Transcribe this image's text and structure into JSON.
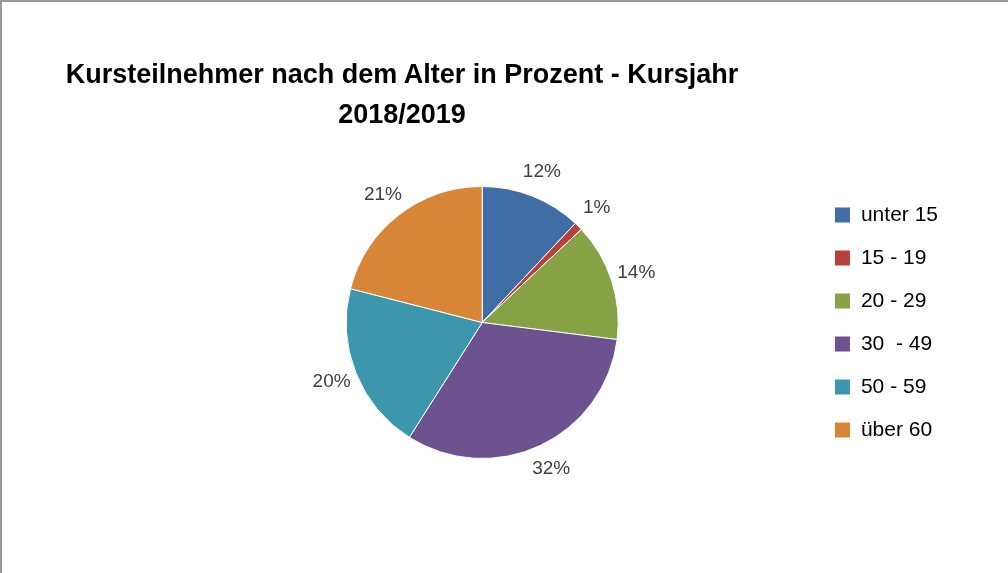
{
  "chart_data": {
    "type": "pie",
    "title": "Kursteilnehmer nach dem Alter in Prozent - Kursjahr 2018/2019",
    "categories": [
      "unter 15",
      "15 - 19",
      "20 - 29",
      "30  - 49",
      "50 - 59",
      "über 60"
    ],
    "values": [
      12,
      1,
      14,
      32,
      20,
      21
    ],
    "colors": [
      "#3f6ea6",
      "#b8413e",
      "#86a244",
      "#6c5390",
      "#3c97ad",
      "#d98537"
    ],
    "value_labels": [
      "12%",
      "1%",
      "14%",
      "32%",
      "20%",
      "21%"
    ],
    "legend": "right"
  }
}
